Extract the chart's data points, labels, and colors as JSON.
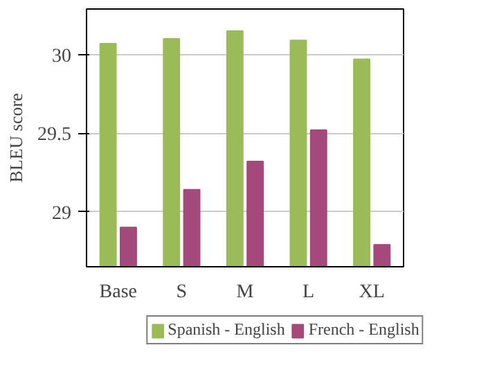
{
  "chart_data": {
    "type": "bar",
    "ylabel": "BLEU score",
    "categories": [
      "Base",
      "S",
      "M",
      "L",
      "XL"
    ],
    "series": [
      {
        "name": "Spanish - English",
        "color": "#9bbb59",
        "values": [
          30.07,
          30.1,
          30.15,
          30.09,
          29.97
        ]
      },
      {
        "name": "French - English",
        "color": "#a4497a",
        "values": [
          28.9,
          29.14,
          29.32,
          29.52,
          28.79
        ]
      }
    ],
    "ylim": [
      28.65,
      30.29
    ],
    "yticks": [
      29,
      29.5,
      30
    ],
    "grid": "y",
    "legend": "bottom"
  }
}
